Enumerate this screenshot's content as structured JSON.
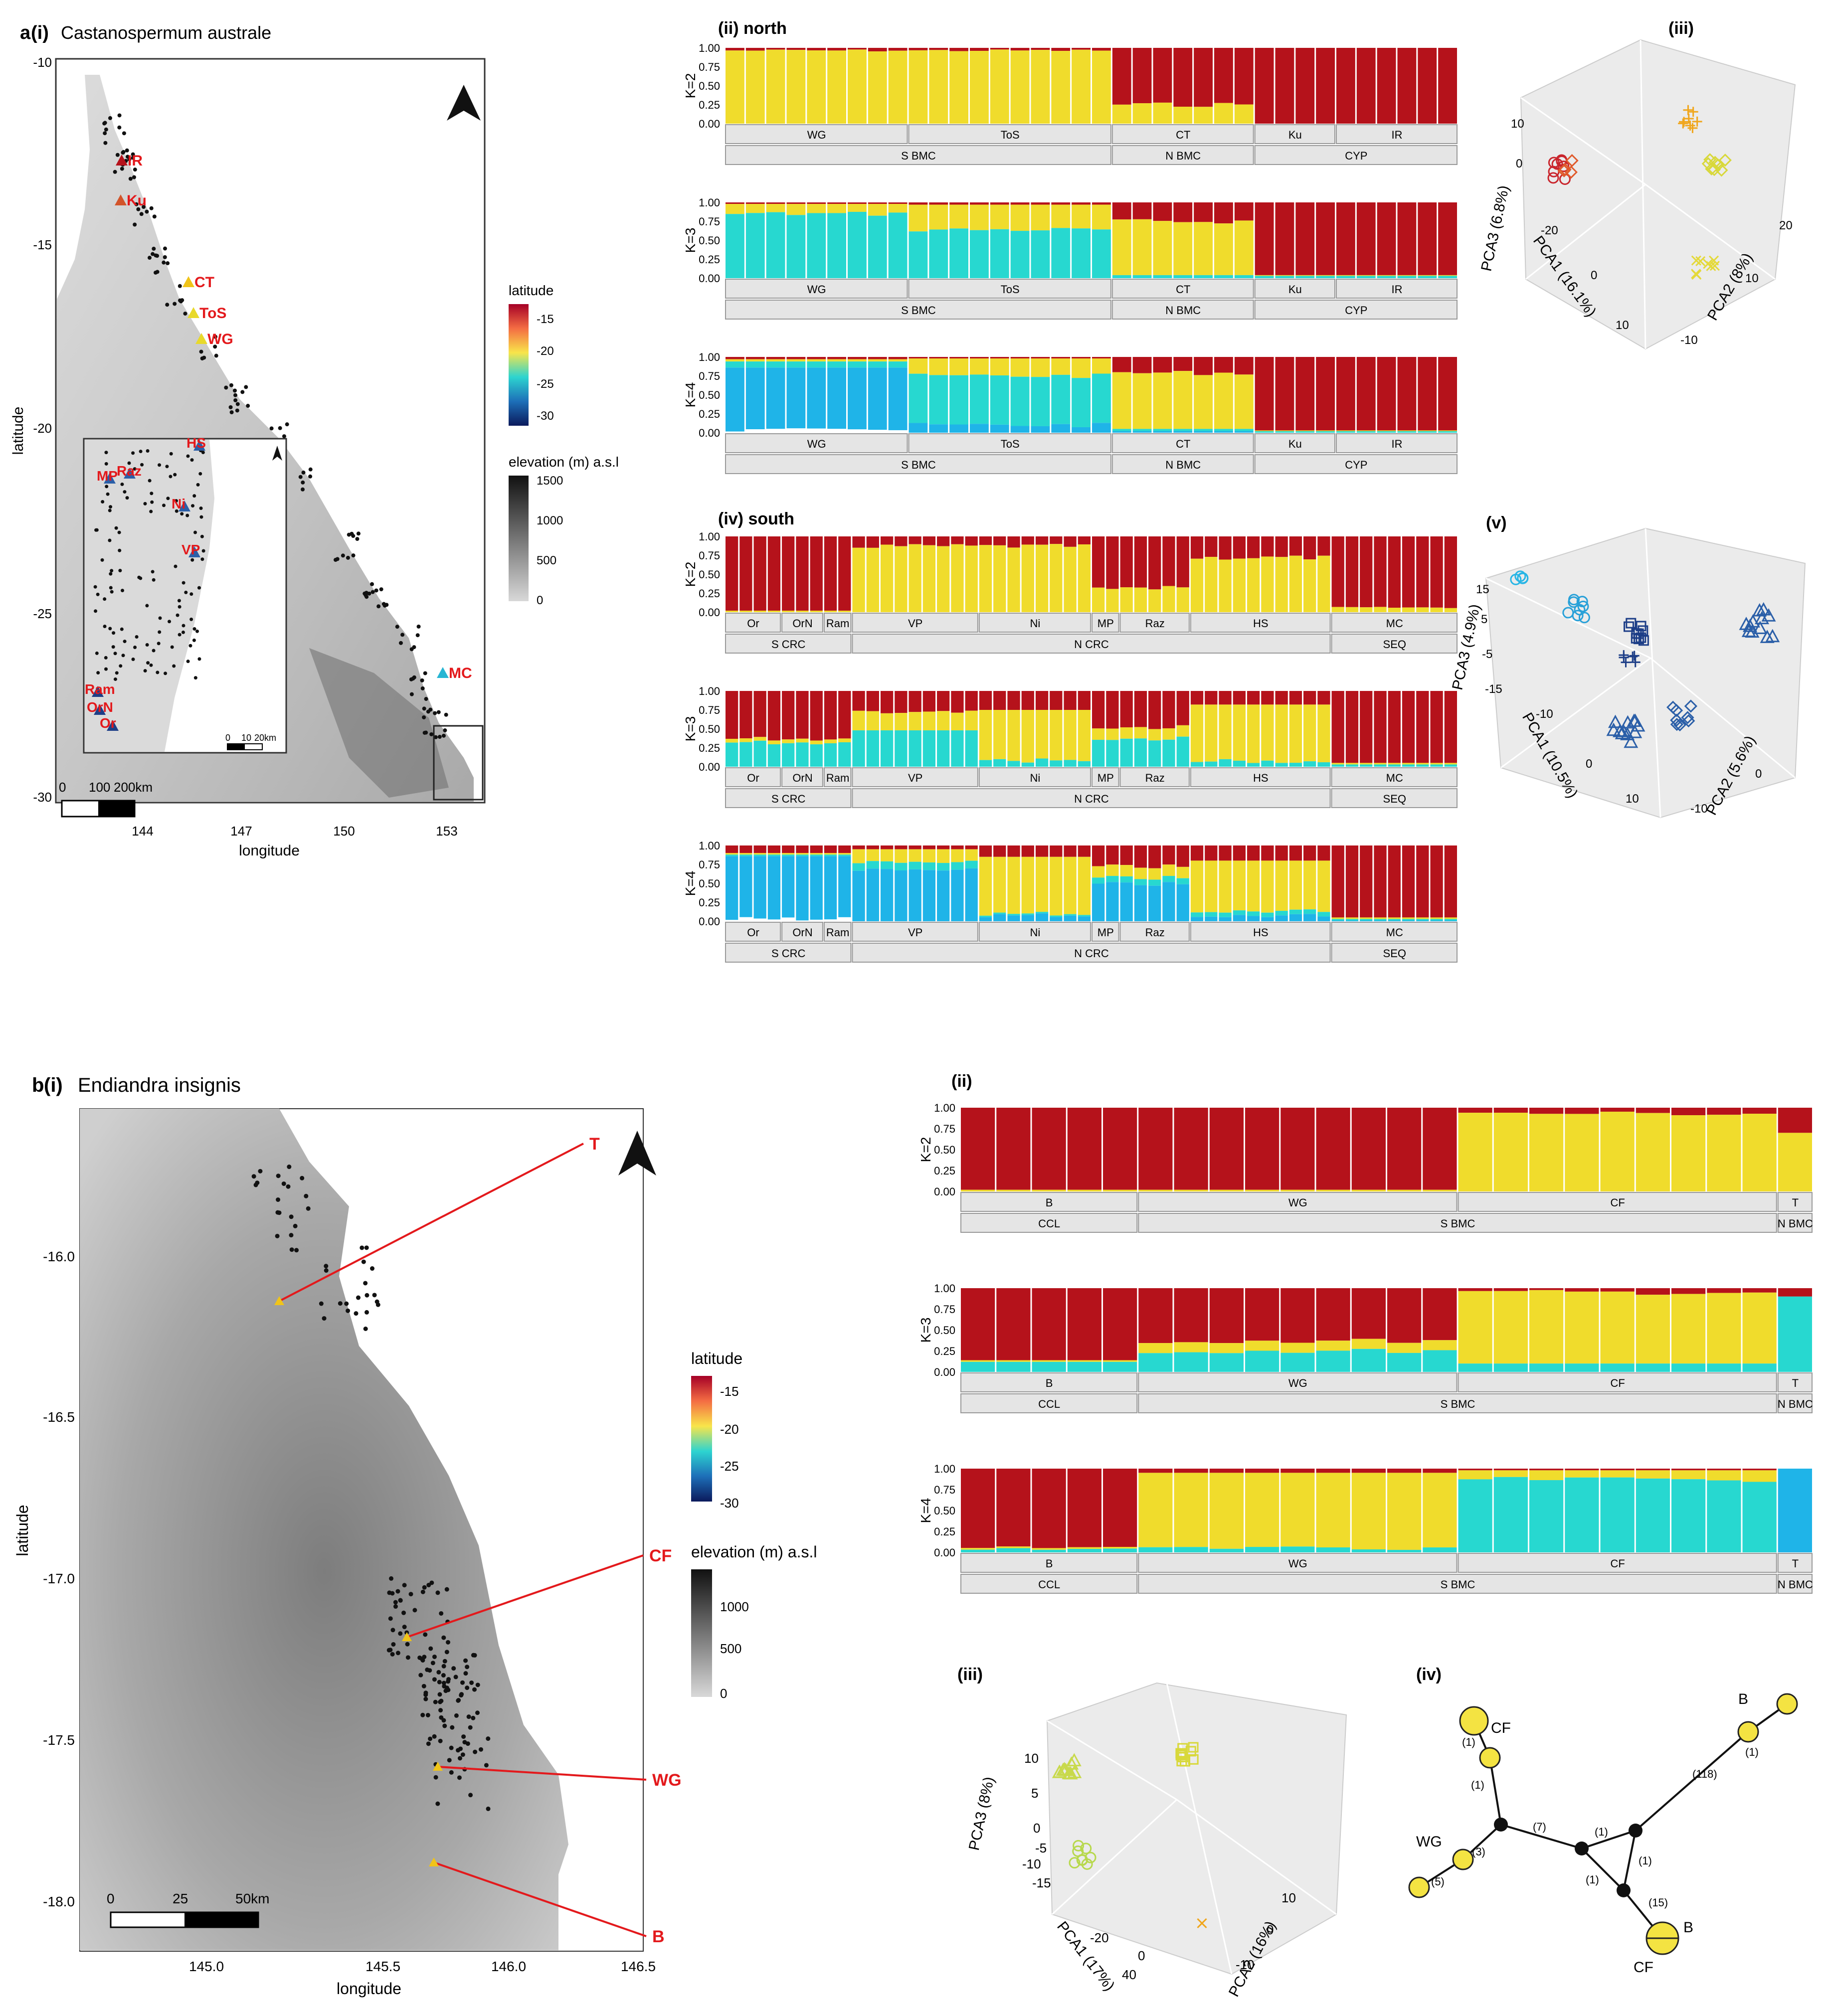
{
  "panel_a": {
    "label": "a",
    "sub_label": "(i)",
    "species": "Castanospermum australe",
    "map": {
      "xlabel": "longitude",
      "ylabel": "latitude",
      "xticks": [
        "144",
        "147",
        "150",
        "153"
      ],
      "yticks": [
        "-10",
        "-15",
        "-20",
        "-25",
        "-30"
      ],
      "scalebar": [
        "0",
        "100",
        "200km"
      ],
      "inset_scalebar": [
        "0",
        "10",
        "20km"
      ],
      "sites": [
        {
          "code": "IR",
          "color": "#b5121b"
        },
        {
          "code": "Ku",
          "color": "#d2542a"
        },
        {
          "code": "CT",
          "color": "#f0c419"
        },
        {
          "code": "ToS",
          "color": "#e8d92b"
        },
        {
          "code": "WG",
          "color": "#e8d92b"
        },
        {
          "code": "MC",
          "color": "#27b5d3"
        }
      ],
      "inset_sites": [
        {
          "code": "Raz",
          "color": "#2b5fa8"
        },
        {
          "code": "HS",
          "color": "#2b5fa8"
        },
        {
          "code": "MP",
          "color": "#2b5fa8"
        },
        {
          "code": "Ni",
          "color": "#2b5fa8"
        },
        {
          "code": "VP",
          "color": "#2b5fa8"
        },
        {
          "code": "Ram",
          "color": "#1d3e87"
        },
        {
          "code": "OrN",
          "color": "#1d3e87"
        },
        {
          "code": "Or",
          "color": "#1d3e87"
        }
      ]
    },
    "legend": {
      "lat_title": "latitude",
      "lat_ticks": [
        "-15",
        "-20",
        "-25",
        "-30"
      ],
      "elev_title": "elevation (m) a.s.l",
      "elev_ticks": [
        "1500",
        "1000",
        "500",
        "0"
      ]
    },
    "north_title": "(ii) north",
    "south_title": "(iv) south",
    "pca_north_label": "(iii)",
    "pca_south_label": "(v)",
    "pca_north_axes": {
      "x": "PCA1 (16.1%)",
      "y": "PCA2 (8%)",
      "z": "PCA3 (6.8%)",
      "ticks_z": [
        "10",
        "0"
      ],
      "ticks_x": [
        "-20",
        "0",
        "10"
      ],
      "ticks_y": [
        "20",
        "10",
        "-10"
      ]
    },
    "pca_south_axes": {
      "x": "PCA1 (10.5%)",
      "y": "PCA2 (5.6%)",
      "z": "PCA3 (4.9%)",
      "ticks_z": [
        "15",
        "5",
        "-5",
        "-15"
      ],
      "ticks_x": [
        "-10",
        "0",
        "10"
      ],
      "ticks_y": [
        "-10",
        "0"
      ]
    }
  },
  "panel_b": {
    "label": "b",
    "sub_label": "(i)",
    "species": "Endiandra insignis",
    "map": {
      "xlabel": "longitude",
      "ylabel": "latitude",
      "xticks": [
        "145.0",
        "145.5",
        "146.0",
        "146.5"
      ],
      "yticks": [
        "-16.0",
        "-16.5",
        "-17.0",
        "-17.5",
        "-18.0"
      ],
      "scalebar": [
        "0",
        "25",
        "50km"
      ],
      "sites": [
        "T",
        "CF",
        "WG",
        "B"
      ]
    },
    "legend": {
      "lat_title": "latitude",
      "lat_ticks": [
        "-15",
        "-20",
        "-25",
        "-30"
      ],
      "elev_title": "elevation (m) a.s.l",
      "elev_ticks": [
        "1000",
        "500",
        "0"
      ]
    },
    "admix_title": "(ii)",
    "pca_label": "(iii)",
    "pca_axes": {
      "x": "PCA1 (17%)",
      "y": "PCA2 (16%)",
      "z": "PCA3 (8%)",
      "ticks_z": [
        "10",
        "5",
        "0",
        "-5",
        "-10",
        "-15"
      ],
      "ticks_x": [
        "-20",
        "0",
        "40"
      ],
      "ticks_y": [
        "10",
        "0",
        "-10"
      ]
    },
    "network_label": "(iv)",
    "network": {
      "node_labels": [
        "CF",
        "WG",
        "B",
        "B",
        "CF"
      ],
      "edge_labels": [
        "(1)",
        "(1)",
        "(3)",
        "(5)",
        "(7)",
        "(1)",
        "(1)",
        "(1)",
        "(15)",
        "(118)",
        "(1)"
      ]
    }
  },
  "chart_data": [
    {
      "type": "bar",
      "id": "a_north",
      "title": "(ii) north",
      "ylabel_ticks": [
        "1.00",
        "0.75",
        "0.50",
        "0.25",
        "0.00"
      ],
      "ylim": [
        0,
        1
      ],
      "cluster_colors": [
        "#b5121b",
        "#f0dc2c",
        "#27d8d0",
        "#1fb4e8"
      ],
      "groups": [
        {
          "pop": "WG",
          "region": "S BMC",
          "n": 9
        },
        {
          "pop": "ToS",
          "region": "S BMC",
          "n": 10
        },
        {
          "pop": "CT",
          "region": "N BMC",
          "n": 7
        },
        {
          "pop": "Ku",
          "region": "CYP",
          "n": 4
        },
        {
          "pop": "IR",
          "region": "CYP",
          "n": 6
        }
      ],
      "rows": [
        {
          "k_label": "K=2",
          "k": 2
        },
        {
          "k_label": "K=3",
          "k": 3
        },
        {
          "k_label": "K=4",
          "k": 4
        }
      ]
    },
    {
      "type": "bar",
      "id": "a_south",
      "title": "(iv) south",
      "ylabel_ticks": [
        "1.00",
        "0.75",
        "0.50",
        "0.25",
        "0.00"
      ],
      "ylim": [
        0,
        1
      ],
      "cluster_colors": [
        "#b5121b",
        "#f0dc2c",
        "#27d8d0",
        "#1fb4e8"
      ],
      "groups": [
        {
          "pop": "Or",
          "region": "S CRC",
          "n": 4
        },
        {
          "pop": "OrN",
          "region": "S CRC",
          "n": 3
        },
        {
          "pop": "Ram",
          "region": "S CRC",
          "n": 2
        },
        {
          "pop": "VP",
          "region": "N CRC",
          "n": 9
        },
        {
          "pop": "Ni",
          "region": "N CRC",
          "n": 8
        },
        {
          "pop": "MP",
          "region": "N CRC",
          "n": 2
        },
        {
          "pop": "Raz",
          "region": "N CRC",
          "n": 5
        },
        {
          "pop": "HS",
          "region": "N CRC",
          "n": 10
        },
        {
          "pop": "MC",
          "region": "SEQ",
          "n": 9
        }
      ],
      "rows": [
        {
          "k_label": "K=2",
          "k": 2
        },
        {
          "k_label": "K=3",
          "k": 3
        },
        {
          "k_label": "K=4",
          "k": 4
        }
      ]
    },
    {
      "type": "bar",
      "id": "b_admix",
      "title": "(ii)",
      "ylabel_ticks": [
        "1.00",
        "0.75",
        "0.50",
        "0.25",
        "0.00"
      ],
      "ylim": [
        0,
        1
      ],
      "cluster_colors": [
        "#b5121b",
        "#f0dc2c",
        "#27d8d0",
        "#1fb4e8"
      ],
      "groups": [
        {
          "pop": "B",
          "region": "CCL",
          "n": 5
        },
        {
          "pop": "WG",
          "region": "S BMC",
          "n": 9
        },
        {
          "pop": "CF",
          "region": "S BMC",
          "n": 9
        },
        {
          "pop": "T",
          "region": "N BMC",
          "n": 1
        }
      ],
      "rows": [
        {
          "k_label": "K=2",
          "k": 2
        },
        {
          "k_label": "K=3",
          "k": 3
        },
        {
          "k_label": "K=4",
          "k": 4
        }
      ]
    }
  ]
}
